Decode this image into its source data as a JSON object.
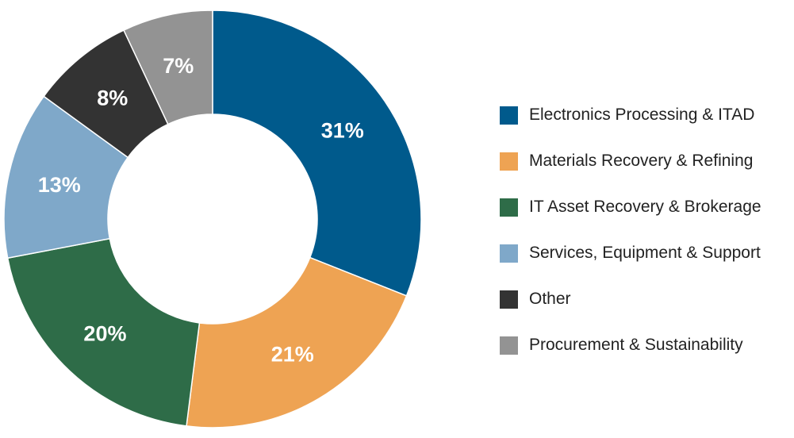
{
  "chart_data": {
    "type": "pie",
    "title": "",
    "donut": true,
    "legend_position": "right",
    "series": [
      {
        "name": "Electronics Processing & ITAD",
        "value": 31,
        "label": "31%",
        "color": "#005a8c"
      },
      {
        "name": "Materials Recovery & Refining",
        "value": 21,
        "label": "21%",
        "color": "#eea353"
      },
      {
        "name": "IT Asset Recovery & Brokerage",
        "value": 20,
        "label": "20%",
        "color": "#2e6c48"
      },
      {
        "name": "Services, Equipment & Support",
        "value": 13,
        "label": "13%",
        "color": "#7fa8c9"
      },
      {
        "name": "Other",
        "value": 8,
        "label": "8%",
        "color": "#333333"
      },
      {
        "name": "Procurement & Sustainability",
        "value": 7,
        "label": "7%",
        "color": "#939393"
      }
    ]
  }
}
